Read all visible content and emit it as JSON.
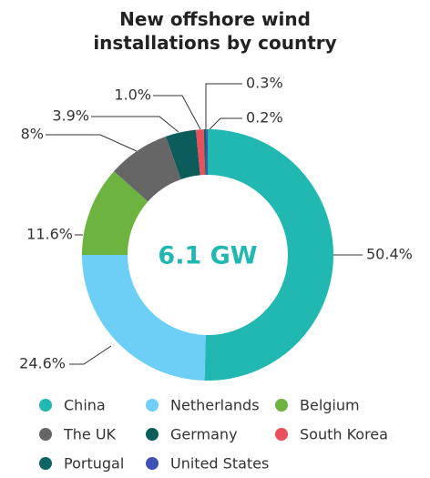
{
  "chart_data": {
    "type": "donut",
    "title": "New offshore wind installations by country",
    "center_label": "6.1 GW",
    "categories": [
      "China",
      "Netherlands",
      "Belgium",
      "The UK",
      "Germany",
      "South Korea",
      "Portugal",
      "United States"
    ],
    "values": [
      50.4,
      24.6,
      11.6,
      8,
      3.9,
      1.0,
      0.3,
      0.2
    ],
    "value_labels": [
      "50.4%",
      "24.6%",
      "11.6%",
      "8%",
      "3.9%",
      "1.0%",
      "0.3%",
      "0.2%"
    ],
    "colors": [
      "#21b8b1",
      "#6dcff6",
      "#6db33f",
      "#666666",
      "#0b5c5a",
      "#e8505b",
      "#0e6663",
      "#3f51b5"
    ],
    "legend": "bottom"
  }
}
